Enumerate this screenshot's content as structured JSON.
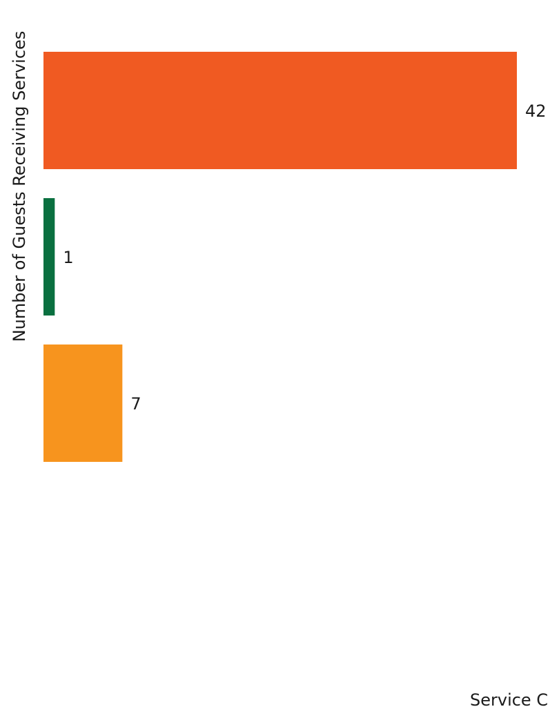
{
  "chart_data": {
    "type": "bar",
    "orientation": "horizontal",
    "title": "",
    "ylabel": "Number of Guests Receiving Services",
    "xlabel": "Service C",
    "xlim": [
      0,
      42
    ],
    "grid": false,
    "legend": "none",
    "series": [
      {
        "values": [
          42,
          1,
          7
        ],
        "colors": [
          "#f05a22",
          "#0a7040",
          "#f7941e"
        ],
        "data_labels": [
          "42",
          "1",
          "7"
        ]
      }
    ]
  }
}
